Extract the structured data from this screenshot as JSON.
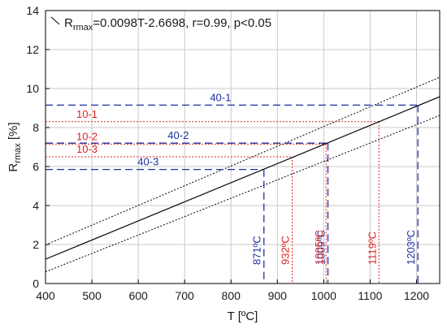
{
  "chart_data": {
    "type": "line",
    "title": "",
    "xlabel": "T [ºC]",
    "ylabel_main": "R",
    "ylabel_sub": "rmax",
    "ylabel_unit": " [%]",
    "xlim": [
      400,
      1250
    ],
    "ylim": [
      0,
      14
    ],
    "x_ticks": [
      400,
      500,
      600,
      700,
      800,
      900,
      1000,
      1100,
      1200
    ],
    "y_ticks": [
      0,
      2,
      4,
      6,
      8,
      10,
      12,
      14
    ],
    "grid": true,
    "legend": {
      "position": "top-left",
      "text_main": "R",
      "text_sub": "rmax",
      "text_rest": "=0.0098T-2.6698, r=0.99, p<0.05"
    },
    "series": [
      {
        "role": "fit",
        "style": "solid",
        "color": "#000000",
        "slope": 0.0098,
        "intercept": -2.6698
      },
      {
        "role": "upper-band",
        "style": "dotted",
        "color": "#000000",
        "points": [
          [
            400,
            1.98
          ],
          [
            1250,
            10.58
          ]
        ]
      },
      {
        "role": "lower-band",
        "style": "dotted",
        "color": "#000000",
        "points": [
          [
            400,
            0.6
          ],
          [
            1250,
            8.62
          ]
        ]
      }
    ],
    "annotations": [
      {
        "label": "40-1",
        "y": 9.15,
        "x_end": 1203,
        "x_label": "1203ºC",
        "color": "#1f2fa0",
        "style": "dashed"
      },
      {
        "label": "10-1",
        "y": 8.3,
        "x_end": 1119,
        "x_label": "1119ºC",
        "color": "#e02020",
        "style": "dotted"
      },
      {
        "label": "40-2",
        "y": 7.2,
        "x_end": 1009,
        "x_label": "1009ºC",
        "color": "#1f2fa0",
        "style": "dashed"
      },
      {
        "label": "10-2",
        "y": 7.15,
        "x_end": 1005,
        "x_label": "1005ºC",
        "color": "#e02020",
        "style": "dotted"
      },
      {
        "label": "10-3",
        "y": 6.5,
        "x_end": 932,
        "x_label": "932ºC",
        "color": "#e02020",
        "style": "dotted"
      },
      {
        "label": "40-3",
        "y": 5.85,
        "x_end": 871,
        "x_label": "871ºC",
        "color": "#1f2fa0",
        "style": "dashed"
      }
    ]
  }
}
